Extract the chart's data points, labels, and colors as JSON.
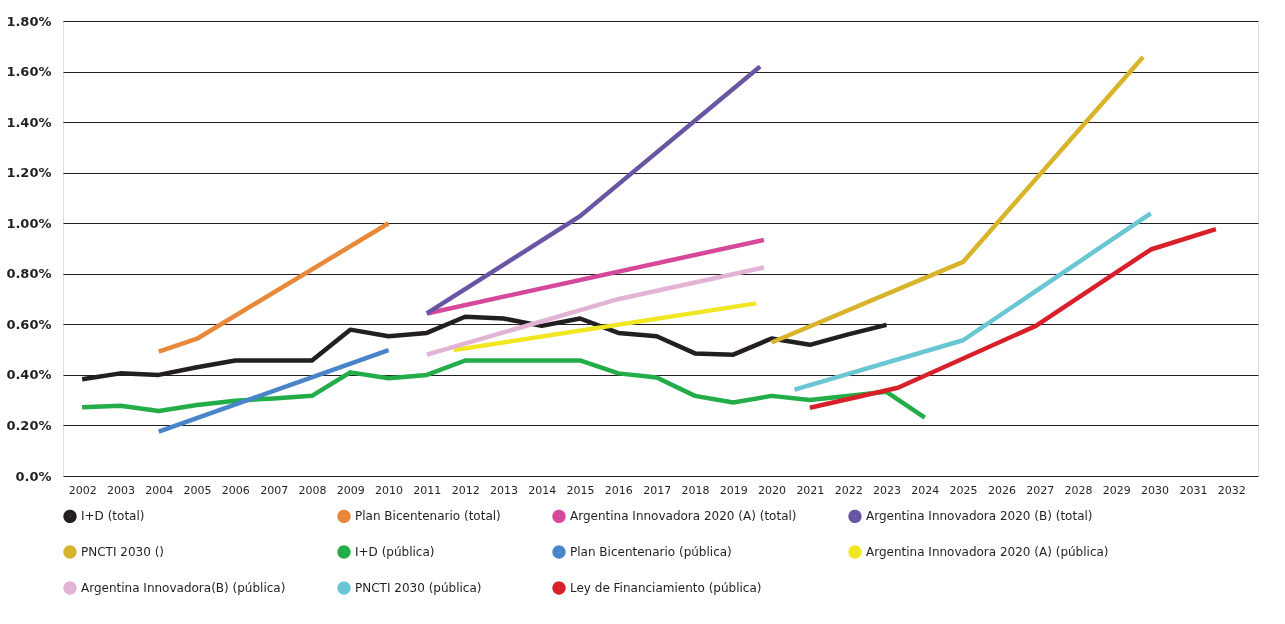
{
  "chart_data": {
    "type": "line",
    "xlim": [
      2001.5,
      2032.7
    ],
    "xticks": [
      2002,
      2003,
      2004,
      2005,
      2006,
      2007,
      2008,
      2009,
      2010,
      2011,
      2012,
      2013,
      2014,
      2015,
      2016,
      2017,
      2018,
      2019,
      2020,
      2021,
      2022,
      2023,
      2024,
      2025,
      2026,
      2027,
      2028,
      2029,
      2030,
      2031,
      2032
    ],
    "ylim": [
      0,
      1.8
    ],
    "yticks": [
      {
        "value": 0,
        "label": "0.0%"
      },
      {
        "value": 0.2,
        "label": "0.20%"
      },
      {
        "value": 0.4,
        "label": "0.40%"
      },
      {
        "value": 0.6,
        "label": "0.60%"
      },
      {
        "value": 0.8,
        "label": "0.80%"
      },
      {
        "value": 1.0,
        "label": "1.00%"
      },
      {
        "value": 1.2,
        "label": "1.20%"
      },
      {
        "value": 1.4,
        "label": "1.40%"
      },
      {
        "value": 1.6,
        "label": "1.60%"
      },
      {
        "value": 1.8,
        "label": "1.80%"
      }
    ],
    "grid": "y",
    "legend": "bottom",
    "marker": "none",
    "line_style": "solid",
    "series": [
      {
        "name": "I+D (total)",
        "color": "#231f20",
        "x": [
          2002,
          2003,
          2004,
          2005,
          2006,
          2007,
          2008,
          2009,
          2010,
          2011,
          2012,
          2013,
          2014,
          2015,
          2016,
          2017,
          2018,
          2019,
          2020,
          2021,
          2022,
          2023
        ],
        "values": [
          0.383,
          0.406,
          0.4,
          0.43,
          0.457,
          0.457,
          0.457,
          0.579,
          0.553,
          0.566,
          0.63,
          0.623,
          0.594,
          0.623,
          0.566,
          0.553,
          0.485,
          0.48,
          0.544,
          0.519,
          0.56,
          0.598
        ]
      },
      {
        "name": "Plan Bicentenario (total)",
        "color": "#e8883a",
        "x": [
          2004,
          2005,
          2010
        ],
        "values": [
          0.492,
          0.543,
          1.0
        ]
      },
      {
        "name": "Argentina Innovadora 2020 (A) (total)",
        "color": "#d6489a",
        "x": [
          2011,
          2019.8
        ],
        "values": [
          0.643,
          0.934
        ]
      },
      {
        "name": "Argentina Innovadora 2020 (B) (total)",
        "color": "#6a55a5",
        "x": [
          2011,
          2015,
          2019.7
        ],
        "values": [
          0.643,
          1.028,
          1.62
        ]
      },
      {
        "name": "PNCTI 2030 ()",
        "color": "#d8b42a",
        "x": [
          2020,
          2025,
          2029.7
        ],
        "values": [
          0.528,
          0.847,
          1.658
        ]
      },
      {
        "name": "I+D (pública)",
        "color": "#22ad48",
        "x": [
          2002,
          2003,
          2004,
          2005,
          2006,
          2007,
          2008,
          2009,
          2010,
          2011,
          2012,
          2013,
          2014,
          2015,
          2016,
          2017,
          2018,
          2019,
          2020,
          2021,
          2023,
          2024
        ],
        "values": [
          0.272,
          0.278,
          0.257,
          0.281,
          0.298,
          0.307,
          0.317,
          0.41,
          0.387,
          0.4,
          0.457,
          0.457,
          0.457,
          0.457,
          0.406,
          0.39,
          0.317,
          0.291,
          0.317,
          0.301,
          0.333,
          0.231
        ]
      },
      {
        "name": "Plan Bicentenario (pública)",
        "color": "#4a84c8",
        "x": [
          2004,
          2010
        ],
        "values": [
          0.176,
          0.498
        ]
      },
      {
        "name": "Argentina Innovadora 2020 (A) (pública)",
        "color": "#f0e621",
        "x": [
          2011.7,
          2019.6
        ],
        "values": [
          0.498,
          0.683
        ]
      },
      {
        "name": "Argentina Innovadora(B) (pública)",
        "color": "#e2b3d4",
        "x": [
          2011,
          2015.9,
          2019.8
        ],
        "values": [
          0.48,
          0.696,
          0.825
        ]
      },
      {
        "name": "PNCTI 2030 (pública)",
        "color": "#69c6d3",
        "x": [
          2020.6,
          2025,
          2029.9
        ],
        "values": [
          0.342,
          0.537,
          1.039
        ]
      },
      {
        "name": "Ley de Financiamiento (pública)",
        "color": "#d7202a",
        "x": [
          2021,
          2023.3,
          2026.9,
          2029.9,
          2031.6
        ],
        "values": [
          0.27,
          0.349,
          0.594,
          0.896,
          0.977
        ]
      }
    ]
  }
}
